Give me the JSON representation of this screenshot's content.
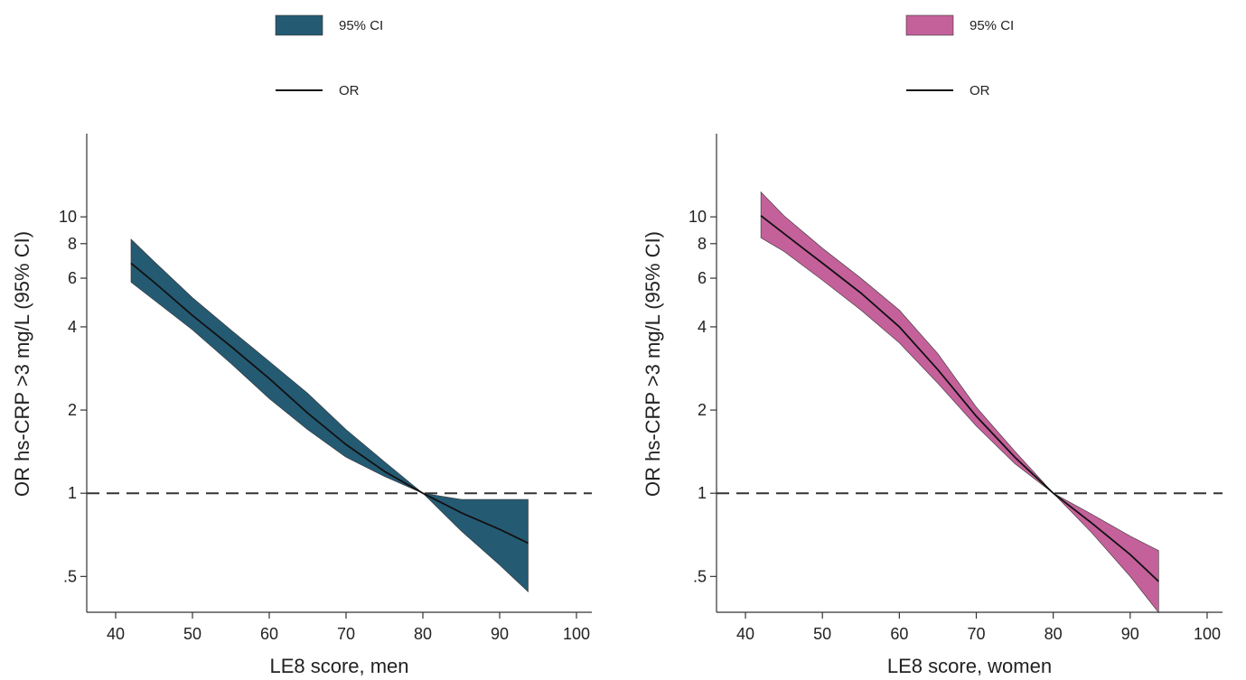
{
  "chart_data": [
    {
      "type": "line",
      "ci_color": "#255a73",
      "xlabel": "LE8 score, men",
      "ylabel": "OR hs-CRP >3 mg/L (95% CI)",
      "xlim": [
        38,
        102
      ],
      "ylim": [
        0.4,
        20
      ],
      "y_scale": "log",
      "xticks": [
        40,
        50,
        60,
        70,
        80,
        90,
        100
      ],
      "yticks": [
        0.5,
        1,
        2,
        4,
        6,
        8,
        10
      ],
      "ytick_labels": [
        ".5",
        "1",
        "2",
        "4",
        "6",
        "8",
        "10"
      ],
      "reference_line": {
        "y": 1,
        "style": "dashed"
      },
      "legend": [
        {
          "type": "area",
          "label": "95% CI"
        },
        {
          "type": "line",
          "label": "OR"
        }
      ],
      "x": [
        42,
        45,
        50,
        55,
        60,
        65,
        70,
        75,
        80,
        85,
        90,
        93.7
      ],
      "series": [
        {
          "name": "OR",
          "values": [
            6.8,
            5.8,
            4.4,
            3.4,
            2.6,
            1.95,
            1.5,
            1.2,
            1.0,
            0.85,
            0.74,
            0.66
          ]
        },
        {
          "name": "95% CI lower",
          "values": [
            5.8,
            5.0,
            3.9,
            2.95,
            2.2,
            1.7,
            1.35,
            1.15,
            1.0,
            0.73,
            0.55,
            0.44
          ]
        },
        {
          "name": "95% CI upper",
          "values": [
            8.3,
            6.9,
            5.1,
            3.9,
            3.0,
            2.3,
            1.7,
            1.3,
            1.0,
            0.95,
            0.95,
            0.95
          ]
        }
      ]
    },
    {
      "type": "line",
      "ci_color": "#c4619a",
      "xlabel": "LE8 score, women",
      "ylabel": "OR hs-CRP >3 mg/L (95% CI)",
      "xlim": [
        38,
        102
      ],
      "ylim": [
        0.4,
        20
      ],
      "y_scale": "log",
      "xticks": [
        40,
        50,
        60,
        70,
        80,
        90,
        100
      ],
      "yticks": [
        0.5,
        1,
        2,
        4,
        6,
        8,
        10
      ],
      "ytick_labels": [
        ".5",
        "1",
        "2",
        "4",
        "6",
        "8",
        "10"
      ],
      "reference_line": {
        "y": 1,
        "style": "dashed"
      },
      "legend": [
        {
          "type": "area",
          "label": "95% CI"
        },
        {
          "type": "line",
          "label": "OR"
        }
      ],
      "x": [
        42,
        45,
        50,
        55,
        60,
        65,
        70,
        75,
        80,
        85,
        90,
        93.7
      ],
      "series": [
        {
          "name": "OR",
          "values": [
            10.1,
            8.7,
            6.8,
            5.3,
            4.0,
            2.8,
            1.9,
            1.35,
            1.0,
            0.78,
            0.6,
            0.48
          ]
        },
        {
          "name": "95% CI lower",
          "values": [
            8.4,
            7.5,
            5.9,
            4.6,
            3.5,
            2.5,
            1.75,
            1.28,
            1.0,
            0.72,
            0.5,
            0.37
          ]
        },
        {
          "name": "95% CI upper",
          "values": [
            12.3,
            10.1,
            7.7,
            6.0,
            4.6,
            3.2,
            2.05,
            1.42,
            1.0,
            0.84,
            0.7,
            0.62
          ]
        }
      ]
    }
  ]
}
